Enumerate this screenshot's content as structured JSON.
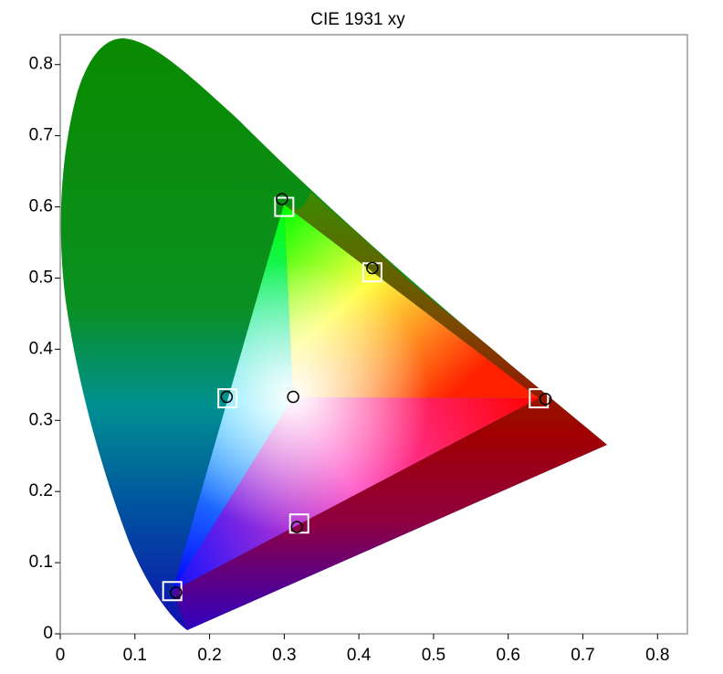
{
  "chart_data": {
    "type": "scatter",
    "title": "CIE 1931 xy",
    "xlim": [
      0,
      0.84
    ],
    "ylim": [
      0,
      0.842
    ],
    "xticks": [
      0,
      0.1,
      0.2,
      0.3,
      0.4,
      0.5,
      0.6,
      0.7,
      0.8
    ],
    "yticks": [
      0,
      0.1,
      0.2,
      0.3,
      0.4,
      0.5,
      0.6,
      0.7,
      0.8
    ],
    "grid": false,
    "series": [
      {
        "marker": "square",
        "color": "#ffffff",
        "x": [
          0.3,
          0.418,
          0.641,
          0.224,
          0.32,
          0.15
        ],
        "values": [
          0.6,
          0.508,
          0.331,
          0.331,
          0.155,
          0.06
        ]
      },
      {
        "marker": "circle",
        "color": "#000000",
        "x": [
          0.297,
          0.418,
          0.65,
          0.223,
          0.317,
          0.155,
          0.312
        ],
        "values": [
          0.611,
          0.514,
          0.33,
          0.333,
          0.15,
          0.058,
          0.333
        ]
      }
    ]
  }
}
